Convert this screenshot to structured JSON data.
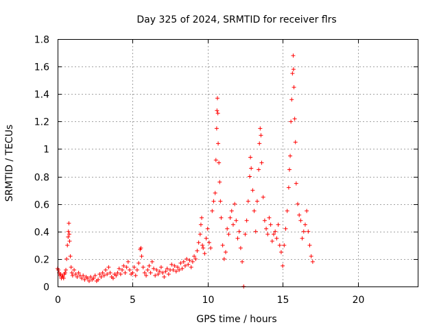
{
  "chart_data": {
    "type": "scatter",
    "title": "Day 325 of 2024, SRMTID for receiver flrs",
    "xlabel": "GPS time / hours",
    "ylabel": "SRMTID / TECUs",
    "xlim": [
      0,
      24
    ],
    "ylim": [
      0,
      1.8
    ],
    "grid": true,
    "marker": "+",
    "color": "#ff0000",
    "xticks": [
      0,
      5,
      10,
      15,
      20
    ],
    "xtick_labels": [
      "0",
      "5",
      "10",
      "15",
      "20"
    ],
    "yticks": [
      0,
      0.2,
      0.4,
      0.6,
      0.8,
      1,
      1.2,
      1.4,
      1.6,
      1.8
    ],
    "ytick_labels": [
      "0",
      "0.2",
      "0.4",
      "0.6",
      "0.8",
      "1",
      "1.2",
      "1.4",
      "1.6",
      "1.8"
    ],
    "series": [
      {
        "name": "SRMTID",
        "points": [
          [
            0.0,
            0.13
          ],
          [
            0.05,
            0.12
          ],
          [
            0.1,
            0.1
          ],
          [
            0.15,
            0.08
          ],
          [
            0.2,
            0.09
          ],
          [
            0.25,
            0.06
          ],
          [
            0.3,
            0.08
          ],
          [
            0.35,
            0.07
          ],
          [
            0.4,
            0.06
          ],
          [
            0.45,
            0.09
          ],
          [
            0.5,
            0.1
          ],
          [
            0.55,
            0.12
          ],
          [
            0.6,
            0.2
          ],
          [
            0.65,
            0.3
          ],
          [
            0.7,
            0.36
          ],
          [
            0.72,
            0.4
          ],
          [
            0.75,
            0.46
          ],
          [
            0.78,
            0.38
          ],
          [
            0.8,
            0.33
          ],
          [
            0.85,
            0.22
          ],
          [
            0.9,
            0.14
          ],
          [
            0.95,
            0.1
          ],
          [
            1.0,
            0.08
          ],
          [
            1.1,
            0.12
          ],
          [
            1.2,
            0.09
          ],
          [
            1.3,
            0.07
          ],
          [
            1.4,
            0.1
          ],
          [
            1.5,
            0.08
          ],
          [
            1.6,
            0.06
          ],
          [
            1.7,
            0.08
          ],
          [
            1.8,
            0.05
          ],
          [
            1.9,
            0.07
          ],
          [
            2.0,
            0.06
          ],
          [
            2.1,
            0.04
          ],
          [
            2.2,
            0.07
          ],
          [
            2.3,
            0.05
          ],
          [
            2.4,
            0.06
          ],
          [
            2.5,
            0.08
          ],
          [
            2.6,
            0.04
          ],
          [
            2.7,
            0.05
          ],
          [
            2.8,
            0.09
          ],
          [
            2.9,
            0.07
          ],
          [
            3.0,
            0.1
          ],
          [
            3.1,
            0.08
          ],
          [
            3.2,
            0.12
          ],
          [
            3.3,
            0.09
          ],
          [
            3.4,
            0.14
          ],
          [
            3.5,
            0.1
          ],
          [
            3.6,
            0.07
          ],
          [
            3.7,
            0.06
          ],
          [
            3.8,
            0.09
          ],
          [
            3.9,
            0.08
          ],
          [
            4.0,
            0.1
          ],
          [
            4.1,
            0.13
          ],
          [
            4.2,
            0.09
          ],
          [
            4.3,
            0.12
          ],
          [
            4.4,
            0.15
          ],
          [
            4.5,
            0.1
          ],
          [
            4.6,
            0.14
          ],
          [
            4.7,
            0.18
          ],
          [
            4.8,
            0.12
          ],
          [
            4.9,
            0.09
          ],
          [
            5.0,
            0.1
          ],
          [
            5.1,
            0.14
          ],
          [
            5.2,
            0.08
          ],
          [
            5.3,
            0.12
          ],
          [
            5.4,
            0.17
          ],
          [
            5.5,
            0.27
          ],
          [
            5.55,
            0.28
          ],
          [
            5.6,
            0.22
          ],
          [
            5.7,
            0.14
          ],
          [
            5.8,
            0.1
          ],
          [
            5.9,
            0.08
          ],
          [
            6.0,
            0.12
          ],
          [
            6.1,
            0.15
          ],
          [
            6.2,
            0.1
          ],
          [
            6.3,
            0.18
          ],
          [
            6.4,
            0.13
          ],
          [
            6.5,
            0.08
          ],
          [
            6.6,
            0.12
          ],
          [
            6.7,
            0.09
          ],
          [
            6.8,
            0.11
          ],
          [
            6.9,
            0.14
          ],
          [
            7.0,
            0.1
          ],
          [
            7.1,
            0.07
          ],
          [
            7.2,
            0.11
          ],
          [
            7.3,
            0.13
          ],
          [
            7.4,
            0.09
          ],
          [
            7.5,
            0.12
          ],
          [
            7.6,
            0.16
          ],
          [
            7.7,
            0.12
          ],
          [
            7.8,
            0.15
          ],
          [
            7.9,
            0.11
          ],
          [
            8.0,
            0.14
          ],
          [
            8.1,
            0.12
          ],
          [
            8.2,
            0.17
          ],
          [
            8.3,
            0.13
          ],
          [
            8.4,
            0.18
          ],
          [
            8.5,
            0.15
          ],
          [
            8.6,
            0.2
          ],
          [
            8.7,
            0.16
          ],
          [
            8.8,
            0.19
          ],
          [
            8.9,
            0.14
          ],
          [
            9.0,
            0.18
          ],
          [
            9.1,
            0.22
          ],
          [
            9.2,
            0.2
          ],
          [
            9.3,
            0.26
          ],
          [
            9.4,
            0.32
          ],
          [
            9.5,
            0.38
          ],
          [
            9.55,
            0.45
          ],
          [
            9.6,
            0.5
          ],
          [
            9.65,
            0.3
          ],
          [
            9.7,
            0.28
          ],
          [
            9.8,
            0.24
          ],
          [
            9.9,
            0.35
          ],
          [
            10.0,
            0.42
          ],
          [
            10.1,
            0.32
          ],
          [
            10.2,
            0.28
          ],
          [
            10.3,
            0.55
          ],
          [
            10.4,
            0.62
          ],
          [
            10.5,
            0.68
          ],
          [
            10.55,
            0.92
          ],
          [
            10.6,
            1.15
          ],
          [
            10.62,
            1.28
          ],
          [
            10.65,
            1.37
          ],
          [
            10.68,
            1.26
          ],
          [
            10.7,
            1.04
          ],
          [
            10.75,
            0.9
          ],
          [
            10.8,
            0.76
          ],
          [
            10.85,
            0.62
          ],
          [
            10.9,
            0.5
          ],
          [
            11.0,
            0.3
          ],
          [
            11.1,
            0.2
          ],
          [
            11.2,
            0.25
          ],
          [
            11.3,
            0.42
          ],
          [
            11.4,
            0.38
          ],
          [
            11.5,
            0.5
          ],
          [
            11.6,
            0.55
          ],
          [
            11.7,
            0.45
          ],
          [
            11.8,
            0.6
          ],
          [
            11.9,
            0.48
          ],
          [
            12.0,
            0.35
          ],
          [
            12.1,
            0.4
          ],
          [
            12.2,
            0.28
          ],
          [
            12.3,
            0.18
          ],
          [
            12.4,
            0.0
          ],
          [
            12.5,
            0.38
          ],
          [
            12.6,
            0.48
          ],
          [
            12.7,
            0.62
          ],
          [
            12.8,
            0.8
          ],
          [
            12.85,
            0.94
          ],
          [
            12.9,
            0.86
          ],
          [
            13.0,
            0.7
          ],
          [
            13.1,
            0.55
          ],
          [
            13.2,
            0.4
          ],
          [
            13.3,
            0.62
          ],
          [
            13.4,
            0.85
          ],
          [
            13.45,
            1.04
          ],
          [
            13.5,
            1.15
          ],
          [
            13.55,
            1.1
          ],
          [
            13.6,
            0.9
          ],
          [
            13.7,
            0.65
          ],
          [
            13.8,
            0.48
          ],
          [
            13.9,
            0.42
          ],
          [
            14.0,
            0.38
          ],
          [
            14.1,
            0.5
          ],
          [
            14.2,
            0.45
          ],
          [
            14.3,
            0.33
          ],
          [
            14.4,
            0.38
          ],
          [
            14.5,
            0.4
          ],
          [
            14.6,
            0.35
          ],
          [
            14.7,
            0.45
          ],
          [
            14.8,
            0.3
          ],
          [
            14.9,
            0.25
          ],
          [
            15.0,
            0.15
          ],
          [
            15.1,
            0.3
          ],
          [
            15.2,
            0.42
          ],
          [
            15.3,
            0.55
          ],
          [
            15.4,
            0.72
          ],
          [
            15.45,
            0.85
          ],
          [
            15.5,
            0.95
          ],
          [
            15.55,
            1.2
          ],
          [
            15.6,
            1.36
          ],
          [
            15.65,
            1.55
          ],
          [
            15.7,
            1.68
          ],
          [
            15.72,
            1.58
          ],
          [
            15.75,
            1.45
          ],
          [
            15.8,
            1.22
          ],
          [
            15.85,
            1.05
          ],
          [
            15.9,
            0.75
          ],
          [
            16.0,
            0.6
          ],
          [
            16.1,
            0.52
          ],
          [
            16.2,
            0.48
          ],
          [
            16.3,
            0.35
          ],
          [
            16.4,
            0.4
          ],
          [
            16.5,
            0.45
          ],
          [
            16.6,
            0.55
          ],
          [
            16.7,
            0.4
          ],
          [
            16.8,
            0.3
          ],
          [
            16.9,
            0.22
          ],
          [
            17.0,
            0.18
          ]
        ]
      }
    ]
  }
}
